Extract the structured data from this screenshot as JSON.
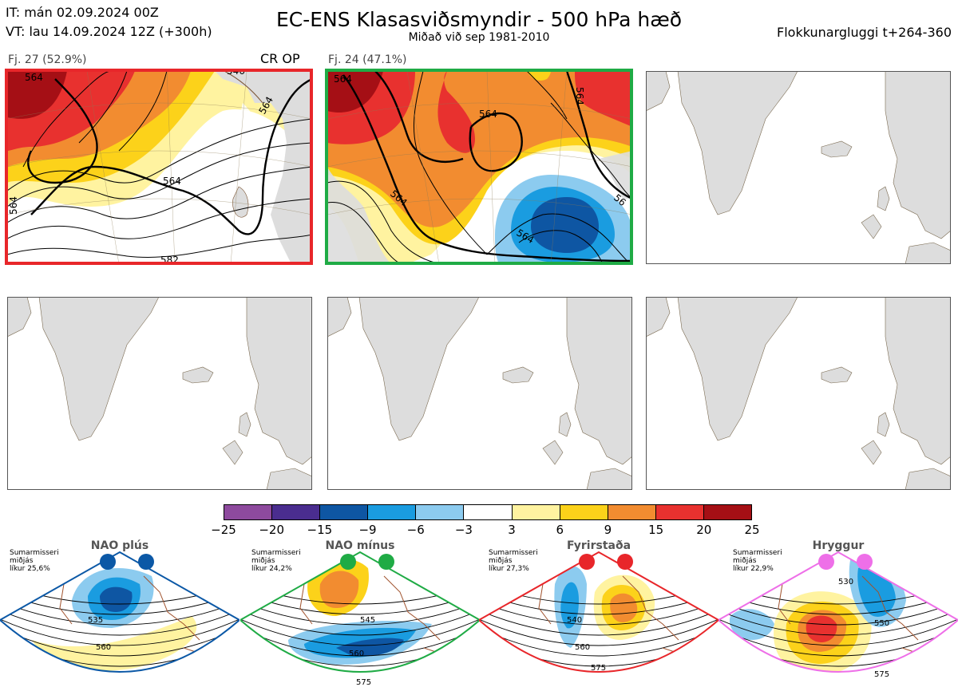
{
  "header": {
    "it": "IT: mán 02.09.2024 00Z",
    "vt": "VT: lau 14.09.2024 12Z  (+300h)",
    "title": "EC-ENS Klasasviðsmyndir - 500 hPa hæð",
    "subtitle": "Miðað við sep 1981-2010",
    "window": "Flokkunargluggi t+264-360"
  },
  "clusters": [
    {
      "label": "Fj. 27 (52.9%)",
      "badge": "CR OP",
      "frame_color": "#e8262a",
      "contours": [
        "564",
        "564",
        "546",
        "564",
        "582",
        "564"
      ]
    },
    {
      "label": "Fj. 24 (47.1%)",
      "badge": "",
      "frame_color": "#1fab45",
      "contours": [
        "564",
        "564",
        "564",
        "564",
        "56"
      ]
    },
    {
      "label": "",
      "badge": ""
    },
    {
      "label": "",
      "badge": ""
    },
    {
      "label": "",
      "badge": ""
    },
    {
      "label": "",
      "badge": ""
    }
  ],
  "colorbar": {
    "colors": [
      "#8e4a9e",
      "#4a2d8f",
      "#0e56a3",
      "#1a9ce0",
      "#8ccbef",
      "#ffffff",
      "#fff3a0",
      "#fcd21a",
      "#f28c30",
      "#e8312f",
      "#a50f15"
    ],
    "ticks": [
      "−25",
      "−20",
      "−15",
      "−9",
      "−6",
      "−3",
      "3",
      "6",
      "9",
      "15",
      "20",
      "25"
    ]
  },
  "regimes": [
    {
      "name": "NAO plús",
      "info": [
        "Sumarmisseri",
        "miðjás",
        "líkur 25,6%"
      ],
      "color": "#0b58a6",
      "labels": [
        "535",
        "560"
      ]
    },
    {
      "name": "NAO mínus",
      "info": [
        "Sumarmisseri",
        "miðjás",
        "líkur 24,2%"
      ],
      "color": "#1fab45",
      "labels": [
        "545",
        "560",
        "575"
      ]
    },
    {
      "name": "Fyrirstaða",
      "info": [
        "Sumarmisseri",
        "miðjás",
        "líkur 27,3%"
      ],
      "color": "#e8262a",
      "labels": [
        "540",
        "560",
        "575"
      ]
    },
    {
      "name": "Hryggur",
      "info": [
        "Sumarmisseri",
        "miðjás",
        "líkur 22,9%"
      ],
      "color": "#ee6fe8",
      "labels": [
        "530",
        "550",
        "575"
      ]
    }
  ]
}
